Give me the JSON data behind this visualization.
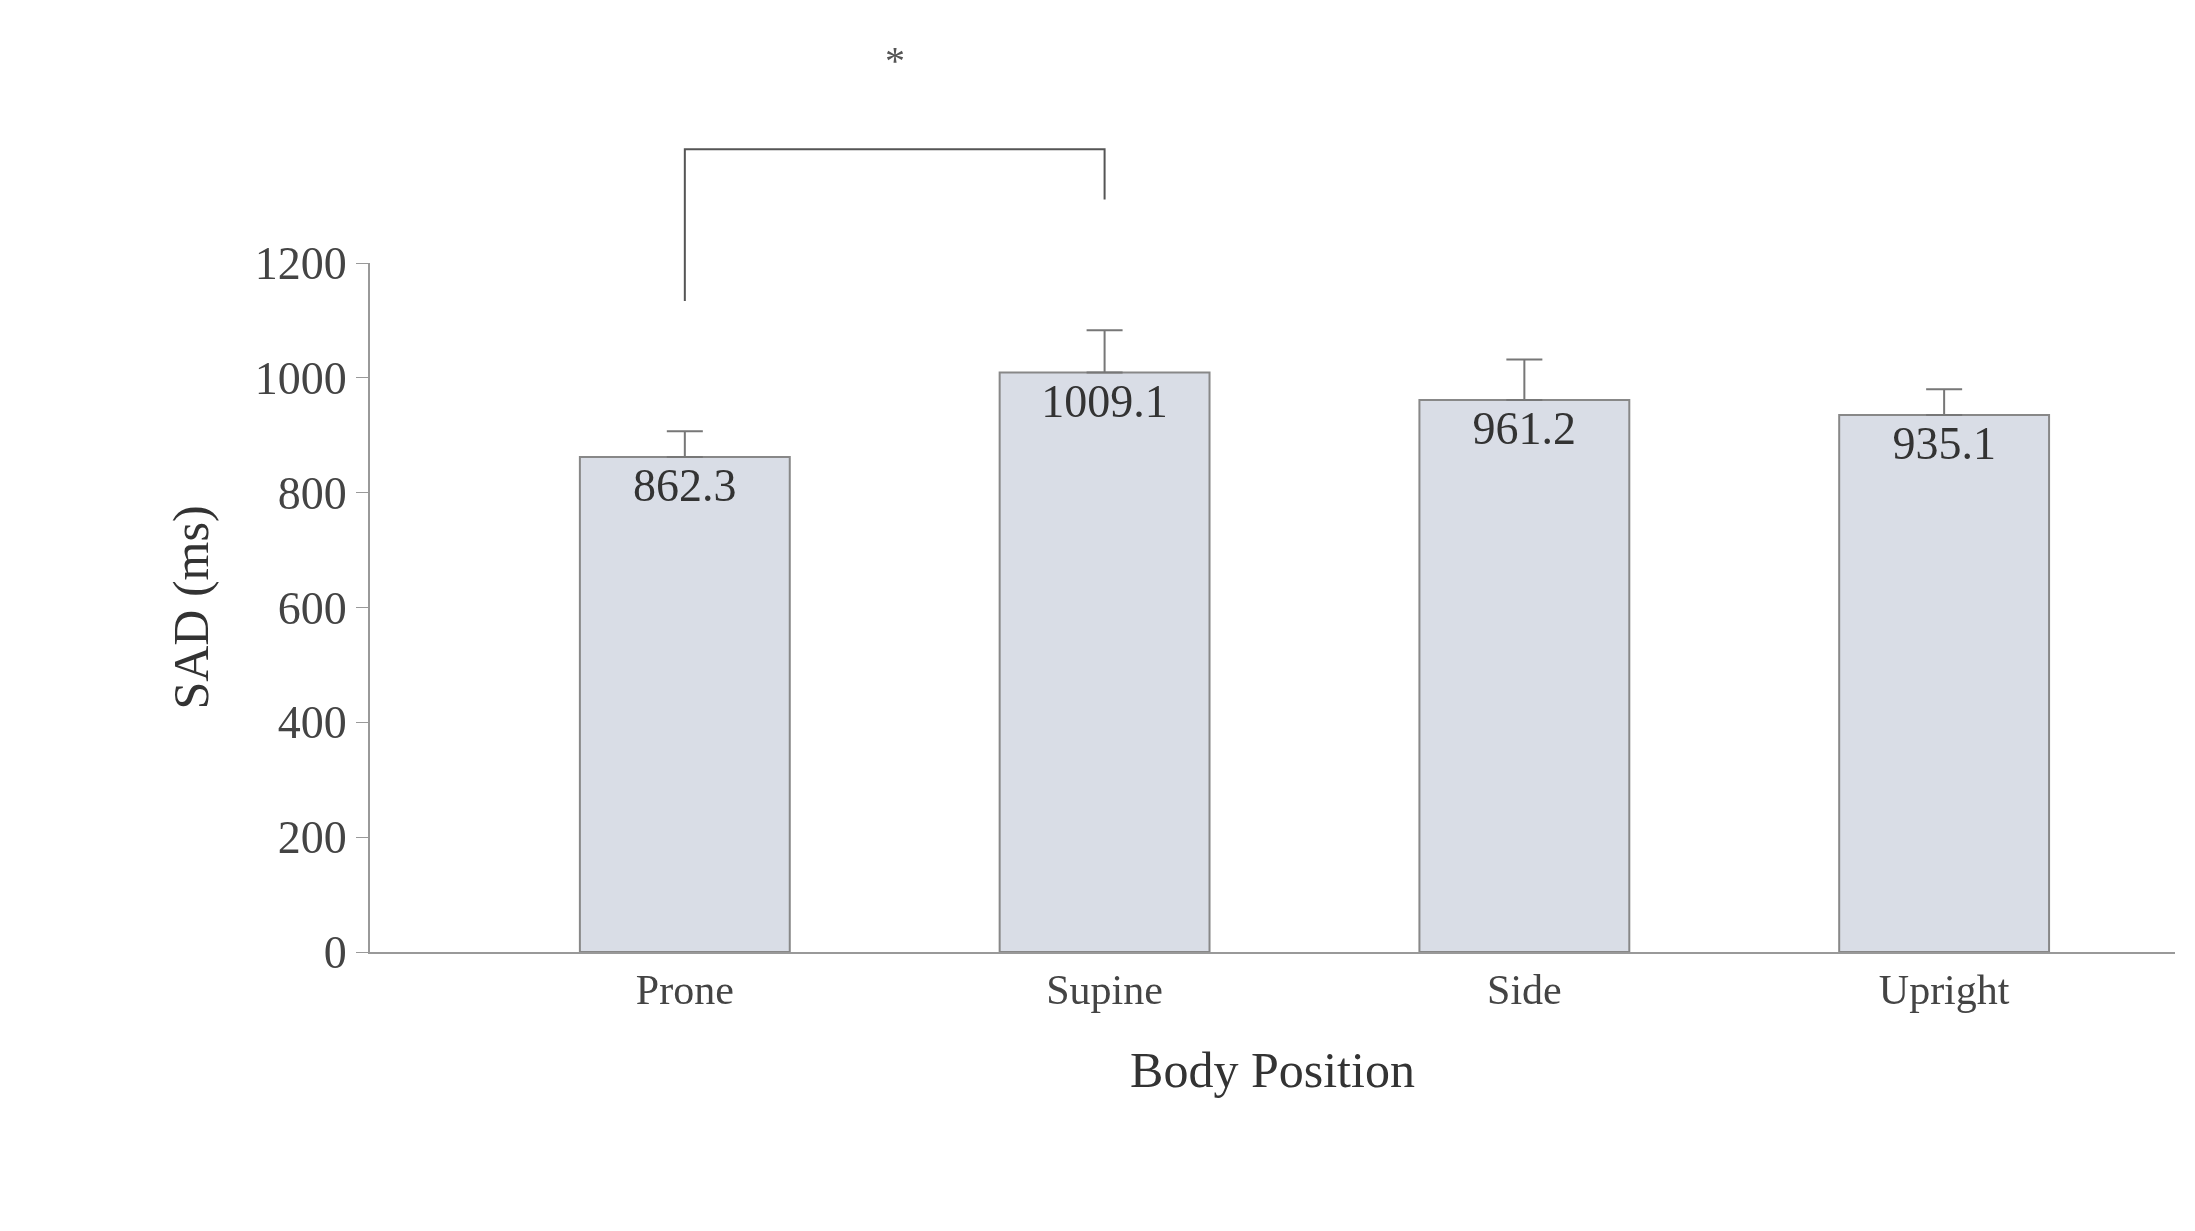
{
  "chart_data": {
    "type": "bar",
    "xlabel": "Body Position",
    "ylabel": "SAD (ms)",
    "categories": [
      "Prone",
      "Supine",
      "Side",
      "Upright"
    ],
    "values": [
      862.3,
      1009.1,
      961.2,
      935.1
    ],
    "errors": [
      [
        862.3,
        907
      ],
      [
        1009.1,
        1083
      ],
      [
        961.2,
        1032
      ],
      [
        935.1,
        980
      ]
    ],
    "color": "#d9dde6",
    "data_labels": true,
    "ylim": [
      0,
      1200
    ],
    "yticks": [
      0,
      200,
      400,
      600,
      800,
      1000,
      1200
    ],
    "annotations": [
      "*"
    ]
  }
}
